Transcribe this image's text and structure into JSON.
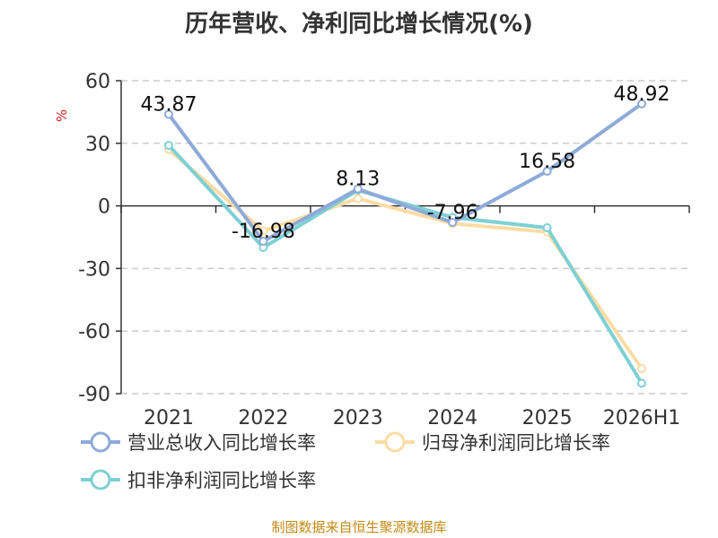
{
  "chart_data": {
    "type": "line",
    "title": "历年营收、净利同比增长情况(%)",
    "ylabel": "%",
    "categories": [
      "2021",
      "2022",
      "2023",
      "2024",
      "2025",
      "2026H1"
    ],
    "ylim": [
      -90,
      60
    ],
    "yticks": [
      60,
      30,
      0,
      -30,
      -60,
      -90
    ],
    "ytick_labels": [
      "60",
      "30",
      "0",
      "-30",
      "-60",
      "-90"
    ],
    "grid": true,
    "legend_position": "bottom-left",
    "series": [
      {
        "name": "营业总收入同比增长率",
        "color": "#8eaad8",
        "values": [
          43.87,
          -16.98,
          8.13,
          -7.96,
          16.58,
          48.92
        ],
        "labels": [
          "43.87",
          "-16.98",
          "8.13",
          "-7.96",
          "16.58",
          "48.92"
        ]
      },
      {
        "name": "归母净利润同比增长率",
        "color": "#fbdca4",
        "values": [
          27.0,
          -12.0,
          3.5,
          -8.5,
          -12.5,
          -78.0
        ]
      },
      {
        "name": "扣非净利润同比增长率",
        "color": "#7ed0d4",
        "values": [
          29.0,
          -20.0,
          7.5,
          -5.5,
          -10.5,
          -85.0
        ]
      }
    ]
  },
  "source": "制图数据来自恒生聚源数据库"
}
